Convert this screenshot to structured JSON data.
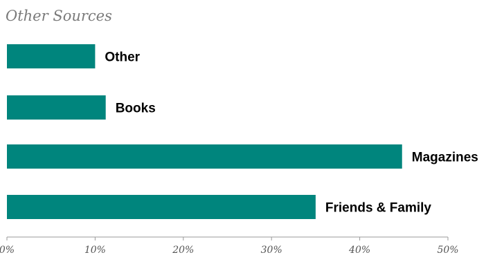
{
  "chart_data": {
    "type": "bar",
    "orientation": "horizontal",
    "title": "Other Sources",
    "xlabel": "",
    "ylabel": "",
    "categories": [
      "Other",
      "Books",
      "Magazines",
      "Friends & Family"
    ],
    "values": [
      10,
      11.2,
      44.8,
      35
    ],
    "xlim": [
      0,
      50
    ],
    "x_ticks": [
      "0%",
      "10%",
      "20%",
      "30%",
      "40%",
      "50%"
    ],
    "x_tick_values": [
      0,
      10,
      20,
      30,
      40,
      50
    ],
    "grid": false,
    "legend": "none",
    "bar_color": "#00857d",
    "axis_color": "#999999",
    "title_color": "#7a7a7a",
    "label_color": "#000000"
  }
}
